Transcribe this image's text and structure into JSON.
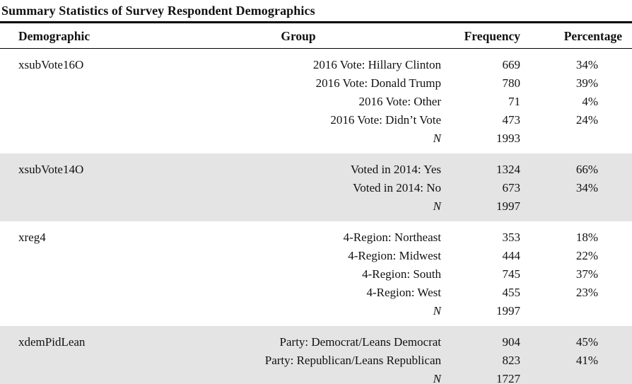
{
  "title": "Summary Statistics of Survey Respondent Demographics",
  "colors": {
    "section_shade": "#e4e4e4",
    "rule": "#000000",
    "text": "#111111"
  },
  "table": {
    "headers": [
      "Demographic",
      "Group",
      "Frequency",
      "Percentage"
    ],
    "sections": [
      {
        "demographic": "xsubVote16O",
        "shaded": false,
        "rows": [
          {
            "group": "2016 Vote: Hillary Clinton",
            "frequency": "669",
            "percentage": "34%"
          },
          {
            "group": "2016 Vote: Donald Trump",
            "frequency": "780",
            "percentage": "39%"
          },
          {
            "group": "2016 Vote: Other",
            "frequency": "71",
            "percentage": "4%"
          },
          {
            "group": "2016 Vote: Didn’t Vote",
            "frequency": "473",
            "percentage": "24%"
          }
        ],
        "n_label": "N",
        "n_value": "1993"
      },
      {
        "demographic": "xsubVote14O",
        "shaded": true,
        "rows": [
          {
            "group": "Voted in 2014: Yes",
            "frequency": "1324",
            "percentage": "66%"
          },
          {
            "group": "Voted in 2014: No",
            "frequency": "673",
            "percentage": "34%"
          }
        ],
        "n_label": "N",
        "n_value": "1997"
      },
      {
        "demographic": "xreg4",
        "shaded": false,
        "rows": [
          {
            "group": "4-Region: Northeast",
            "frequency": "353",
            "percentage": "18%"
          },
          {
            "group": "4-Region: Midwest",
            "frequency": "444",
            "percentage": "22%"
          },
          {
            "group": "4-Region: South",
            "frequency": "745",
            "percentage": "37%"
          },
          {
            "group": "4-Region: West",
            "frequency": "455",
            "percentage": "23%"
          }
        ],
        "n_label": "N",
        "n_value": "1997"
      },
      {
        "demographic": "xdemPidLean",
        "shaded": true,
        "rows": [
          {
            "group": "Party: Democrat/Leans Democrat",
            "frequency": "904",
            "percentage": "45%"
          },
          {
            "group": "Party: Republican/Leans Republican",
            "frequency": "823",
            "percentage": "41%"
          }
        ],
        "n_label": "N",
        "n_value": "1727"
      }
    ]
  }
}
